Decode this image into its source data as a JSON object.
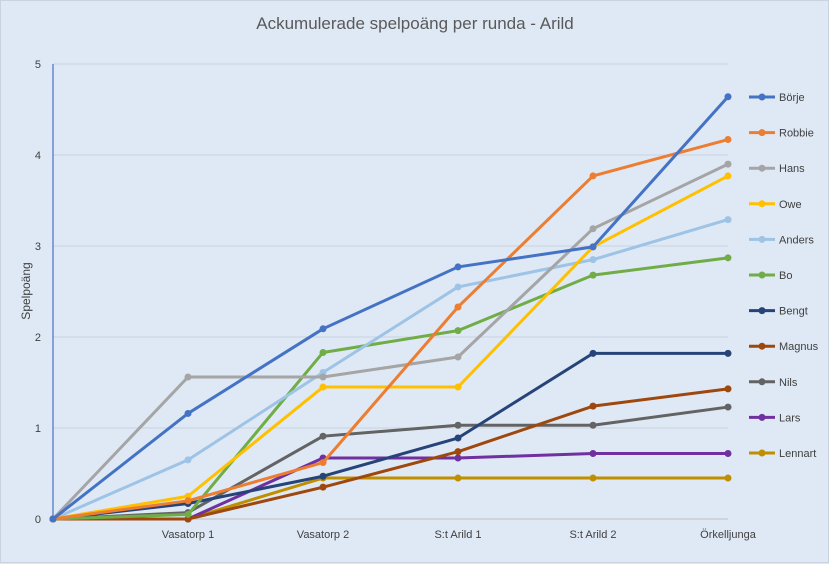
{
  "chart_data": {
    "type": "line",
    "title": "Ackumulerade spelpoäng per runda - Arild",
    "xlabel": "",
    "ylabel": "Spelpoäng",
    "ylim": [
      0,
      5
    ],
    "yticks": [
      0,
      1,
      2,
      3,
      4,
      5
    ],
    "categories": [
      "",
      "Vasatorp 1",
      "Vasatorp 2",
      "S:t Arild 1",
      "S:t Arild 2",
      "Örkelljunga"
    ],
    "grid": true,
    "legend_position": "right",
    "series": [
      {
        "name": "Börje",
        "color": "#4472c4",
        "values": [
          0,
          1.16,
          2.09,
          2.77,
          2.99,
          4.64
        ]
      },
      {
        "name": "Robbie",
        "color": "#ed7d31",
        "values": [
          0,
          0.2,
          0.62,
          2.33,
          3.77,
          4.17
        ]
      },
      {
        "name": "Hans",
        "color": "#a5a5a5",
        "values": [
          0,
          1.56,
          1.56,
          1.78,
          3.19,
          3.9
        ]
      },
      {
        "name": "Owe",
        "color": "#ffc000",
        "values": [
          0,
          0.25,
          1.45,
          1.45,
          2.99,
          3.77
        ]
      },
      {
        "name": "Anders",
        "color": "#9dc3e6",
        "values": [
          0,
          0.65,
          1.61,
          2.55,
          2.85,
          3.29
        ]
      },
      {
        "name": "Bo",
        "color": "#70ad47",
        "values": [
          0,
          0.05,
          1.83,
          2.07,
          2.68,
          2.87
        ]
      },
      {
        "name": "Bengt",
        "color": "#264478",
        "values": [
          0,
          0.17,
          0.47,
          0.89,
          1.82,
          1.82
        ]
      },
      {
        "name": "Magnus",
        "color": "#9e480e",
        "values": [
          0,
          0.0,
          0.35,
          0.74,
          1.24,
          1.43
        ]
      },
      {
        "name": "Nils",
        "color": "#636363",
        "values": [
          0,
          0.07,
          0.91,
          1.03,
          1.03,
          1.23
        ]
      },
      {
        "name": "Lars",
        "color": "#7030a0",
        "values": [
          0,
          0.0,
          0.67,
          0.67,
          0.72,
          0.72
        ]
      },
      {
        "name": "Lennart",
        "color": "#bf8f00",
        "values": [
          0,
          0.0,
          0.45,
          0.45,
          0.45,
          0.45
        ]
      }
    ]
  }
}
